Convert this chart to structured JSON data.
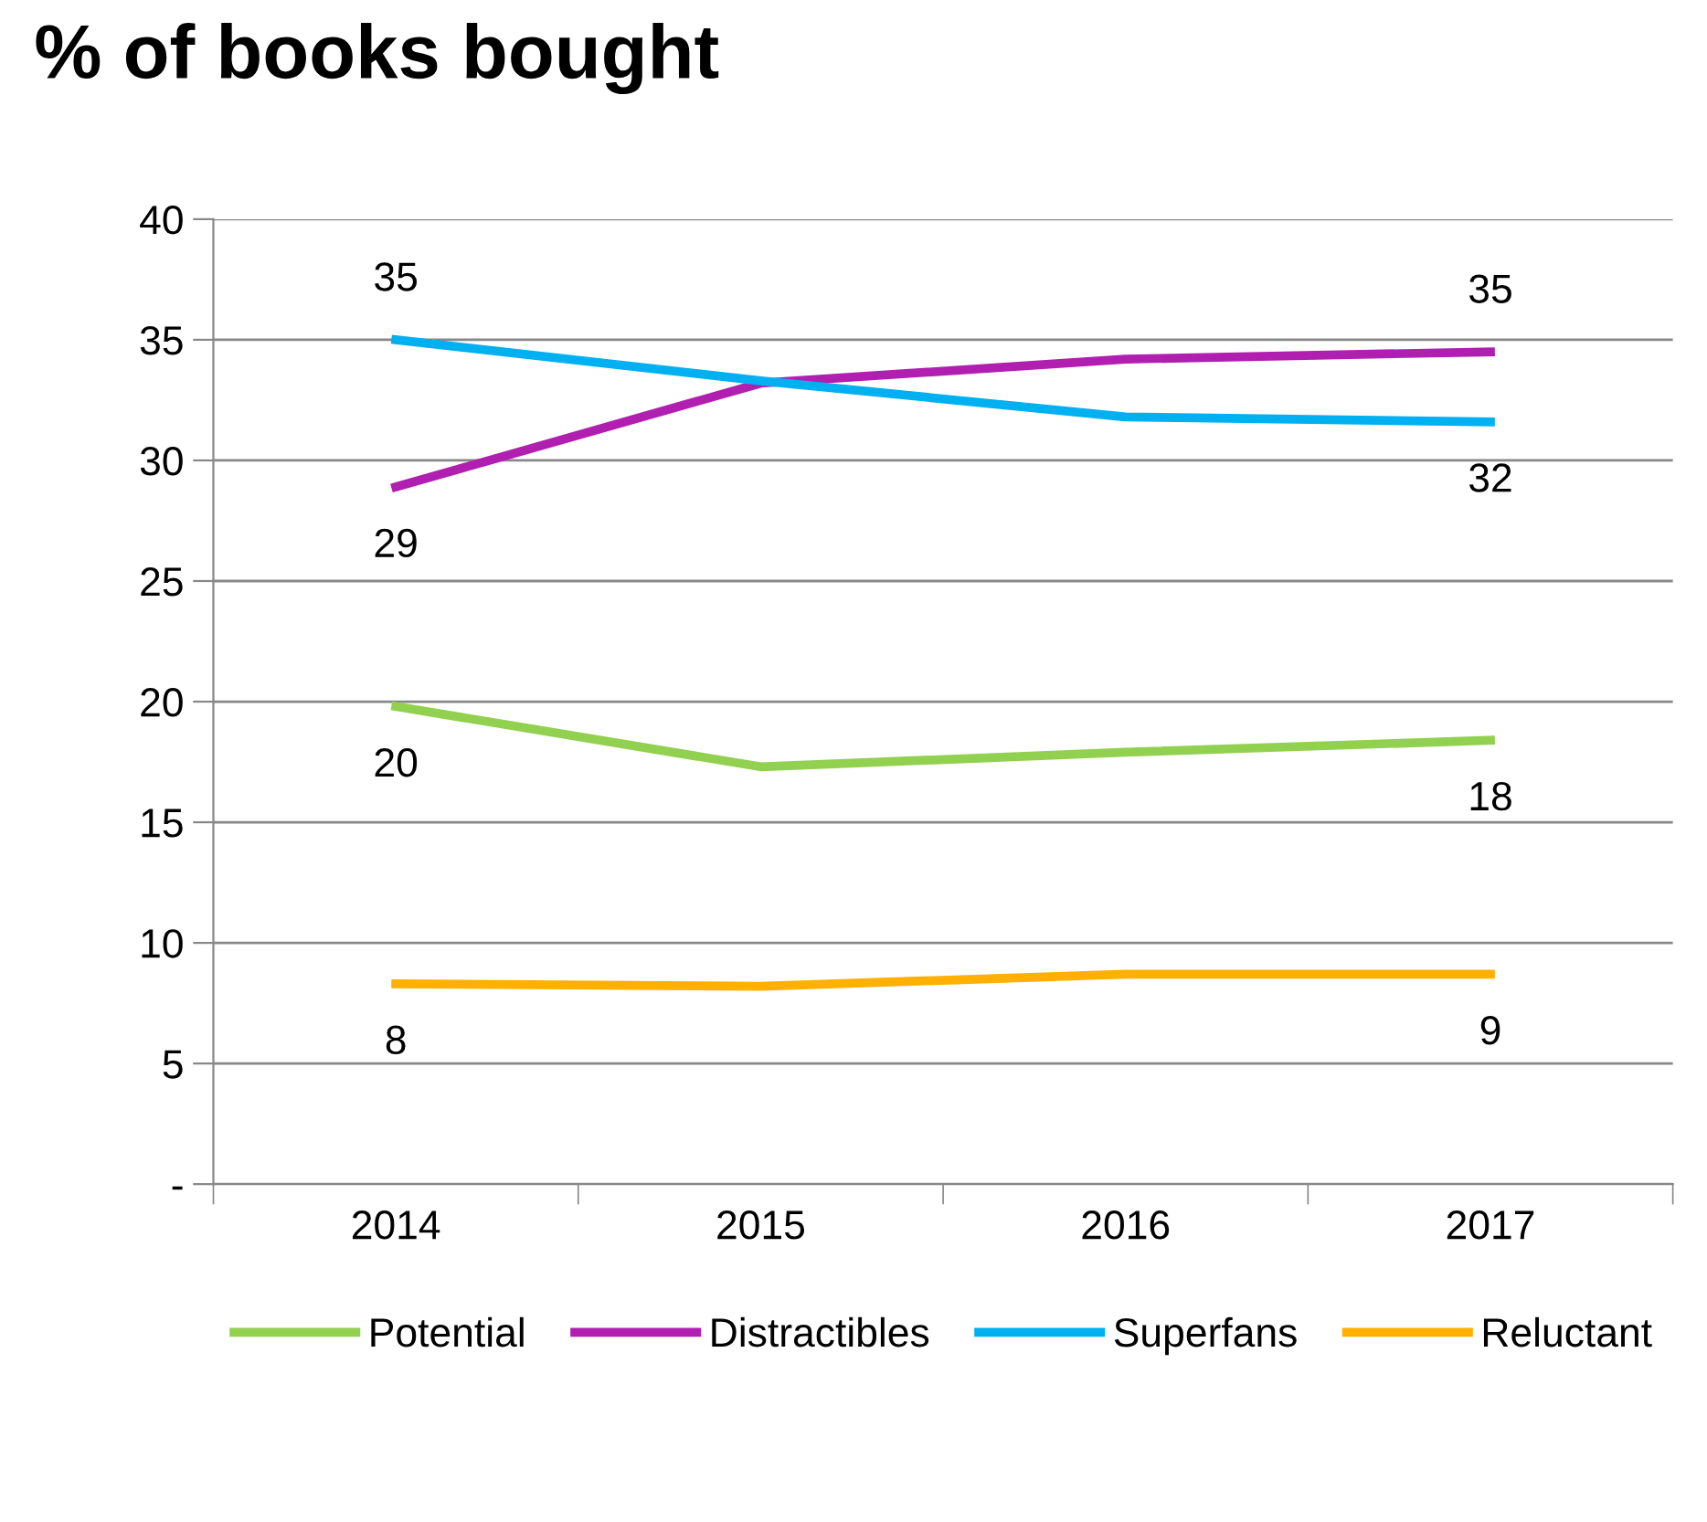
{
  "chart_data": {
    "type": "line",
    "title": "% of books bought",
    "categories": [
      "2014",
      "2015",
      "2016",
      "2017"
    ],
    "series": [
      {
        "name": "Potential",
        "color": "#92d050",
        "values": [
          19.8,
          17.3,
          17.9,
          18.4
        ],
        "value_labels": [
          "20",
          null,
          null,
          "18"
        ]
      },
      {
        "name": "Distractibles",
        "color": "#b01fb0",
        "values": [
          28.9,
          33.2,
          34.2,
          34.5
        ],
        "value_labels": [
          "29",
          null,
          null,
          "35"
        ]
      },
      {
        "name": "Superfans",
        "color": "#00b0f0",
        "values": [
          35.0,
          33.3,
          31.8,
          31.6
        ],
        "value_labels": [
          "35",
          null,
          null,
          "32"
        ]
      },
      {
        "name": "Reluctant",
        "color": "#ffb000",
        "values": [
          8.3,
          8.2,
          8.7,
          8.7
        ],
        "value_labels": [
          "8",
          null,
          null,
          "9"
        ]
      }
    ],
    "ylim": [
      0,
      40
    ],
    "yticks": [
      {
        "value": 0,
        "label": "-"
      },
      5,
      10,
      15,
      20,
      25,
      30,
      35,
      40
    ],
    "grid": "y",
    "legend": "bottom",
    "marker": "none",
    "line_style": "solid"
  }
}
